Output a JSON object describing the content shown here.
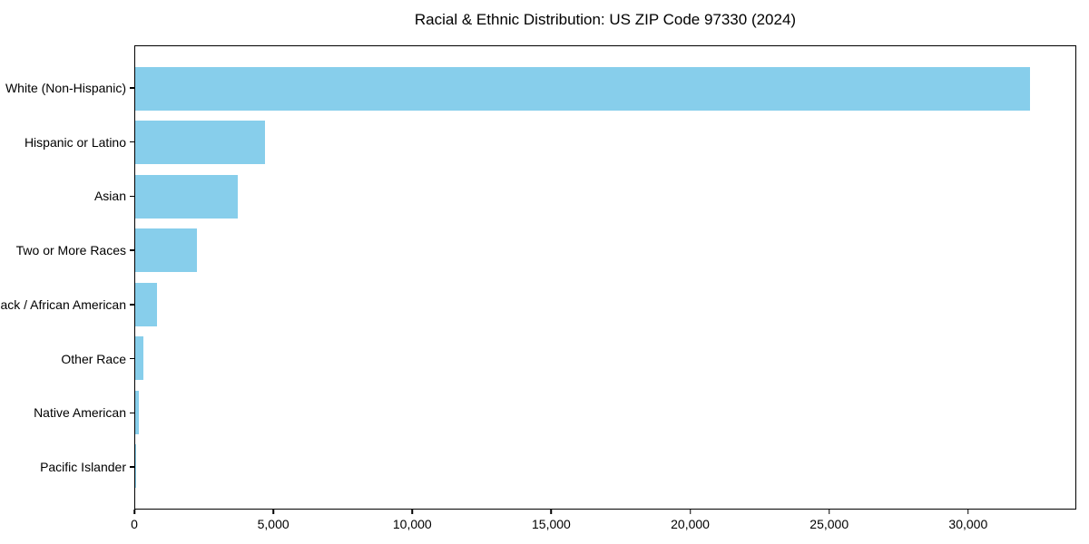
{
  "title": "Racial & Ethnic Distribution: US ZIP Code 97330 (2024)",
  "colors": {
    "bar_color": "#87CEEB",
    "axis_color": "#000000",
    "text_color": "#000000",
    "background": "#ffffff"
  },
  "chart_data": {
    "type": "bar",
    "orientation": "horizontal",
    "title": "Racial & Ethnic Distribution: US ZIP Code 97330 (2024)",
    "xlabel": "",
    "ylabel": "",
    "categories": [
      "White (Non-Hispanic)",
      "Hispanic or Latino",
      "Asian",
      "Two or More Races",
      "Black / African American",
      "Other Race",
      "Native American",
      "Pacific Islander"
    ],
    "values": [
      32240,
      4670,
      3710,
      2210,
      770,
      300,
      120,
      25
    ],
    "xlim": [
      0,
      33890
    ],
    "xticks": [
      0,
      5000,
      10000,
      15000,
      20000,
      25000,
      30000
    ],
    "xtick_labels": [
      "0",
      "5,000",
      "10,000",
      "15,000",
      "20,000",
      "25,000",
      "30,000"
    ],
    "bar_color": "#87CEEB",
    "grid": false,
    "legend": null
  }
}
